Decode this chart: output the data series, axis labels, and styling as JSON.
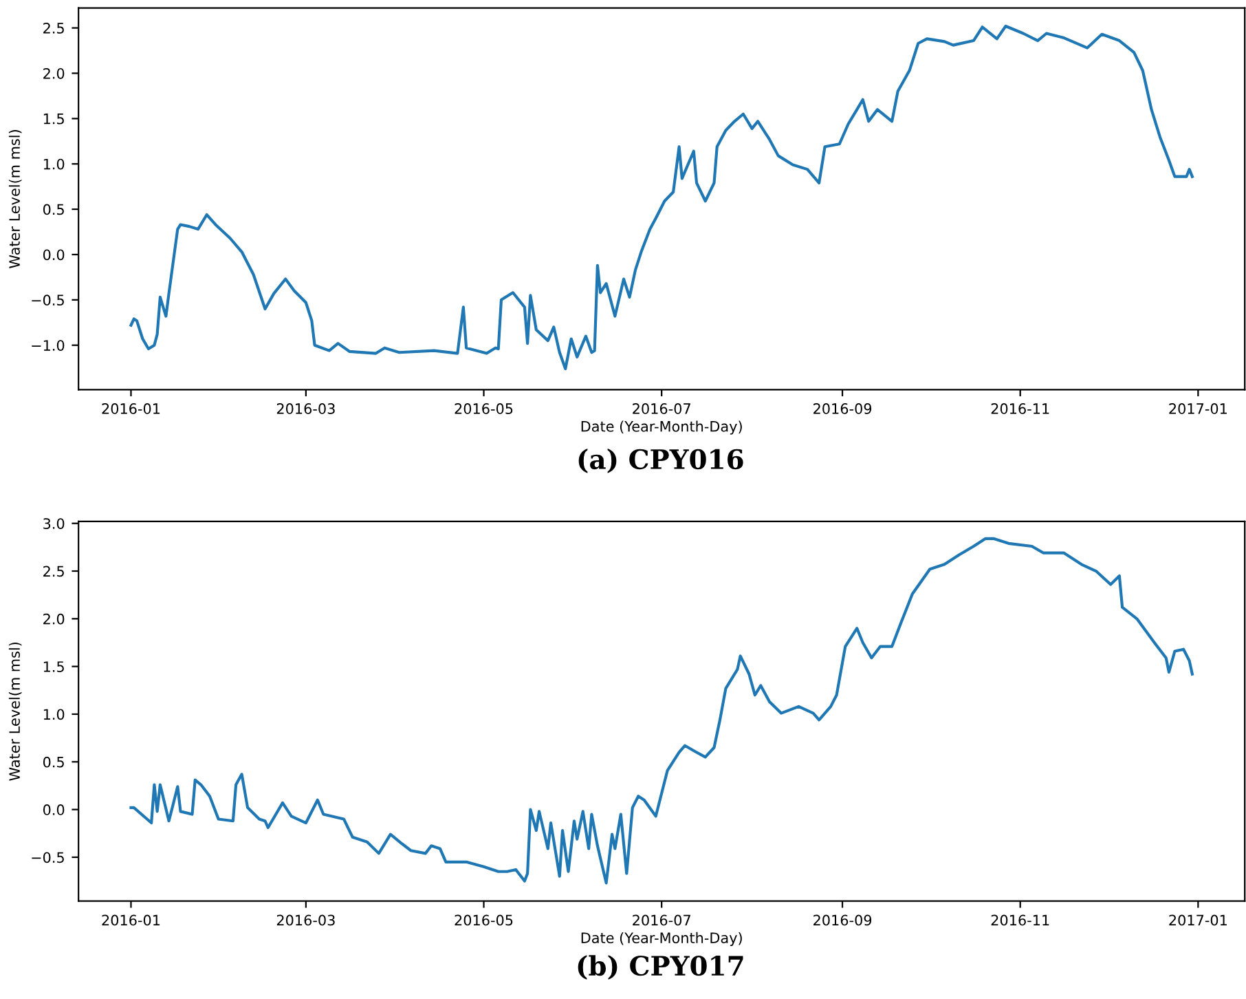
{
  "chart_data": [
    {
      "type": "line",
      "xlabel": "Date (Year-Month-Day)",
      "ylabel": "Water Level(m msl)",
      "annotations": [
        "(a) CPY016"
      ],
      "grid": false,
      "legend": false,
      "xlim": [
        "2015-12-14",
        "2017-01-17"
      ],
      "xticks": [
        "2016-01",
        "2016-03",
        "2016-05",
        "2016-07",
        "2016-09",
        "2016-11",
        "2017-01"
      ],
      "ylim": [
        -1.49,
        2.72
      ],
      "yticks": [
        {
          "value": -1,
          "label": "−1.0"
        },
        {
          "value": -0.5,
          "label": "−0.5"
        },
        {
          "value": 0,
          "label": "0.0"
        },
        {
          "value": 0.5,
          "label": "0.5"
        },
        {
          "value": 1,
          "label": "1.0"
        },
        {
          "value": 1.5,
          "label": "1.5"
        },
        {
          "value": 2,
          "label": "2.0"
        },
        {
          "value": 2.5,
          "label": "2.5"
        }
      ],
      "series": [
        {
          "color": "#1f77b4",
          "x": [
            "2016-01-01",
            "2016-01-02",
            "2016-01-03",
            "2016-01-05",
            "2016-01-07",
            "2016-01-09",
            "2016-01-10",
            "2016-01-11",
            "2016-01-13",
            "2016-01-14",
            "2016-01-17",
            "2016-01-18",
            "2016-01-21",
            "2016-01-24",
            "2016-01-27",
            "2016-01-30",
            "2016-02-04",
            "2016-02-08",
            "2016-02-12",
            "2016-02-16",
            "2016-02-19",
            "2016-02-23",
            "2016-02-26",
            "2016-03-01",
            "2016-03-03",
            "2016-03-04",
            "2016-03-09",
            "2016-03-12",
            "2016-03-16",
            "2016-03-25",
            "2016-03-28",
            "2016-04-02",
            "2016-04-14",
            "2016-04-22",
            "2016-04-24",
            "2016-04-25",
            "2016-05-02",
            "2016-05-05",
            "2016-05-06",
            "2016-05-07",
            "2016-05-11",
            "2016-05-15",
            "2016-05-16",
            "2016-05-17",
            "2016-05-19",
            "2016-05-23",
            "2016-05-25",
            "2016-05-27",
            "2016-05-29",
            "2016-05-31",
            "2016-06-02",
            "2016-06-05",
            "2016-06-07",
            "2016-06-08",
            "2016-06-09",
            "2016-06-10",
            "2016-06-12",
            "2016-06-15",
            "2016-06-18",
            "2016-06-20",
            "2016-06-22",
            "2016-06-24",
            "2016-06-27",
            "2016-06-29",
            "2016-07-02",
            "2016-07-05",
            "2016-07-07",
            "2016-07-08",
            "2016-07-12",
            "2016-07-13",
            "2016-07-16",
            "2016-07-19",
            "2016-07-20",
            "2016-07-23",
            "2016-07-26",
            "2016-07-29",
            "2016-08-01",
            "2016-08-03",
            "2016-08-07",
            "2016-08-10",
            "2016-08-15",
            "2016-08-20",
            "2016-08-24",
            "2016-08-26",
            "2016-08-31",
            "2016-09-03",
            "2016-09-06",
            "2016-09-08",
            "2016-09-10",
            "2016-09-13",
            "2016-09-18",
            "2016-09-20",
            "2016-09-24",
            "2016-09-27",
            "2016-09-30",
            "2016-10-06",
            "2016-10-09",
            "2016-10-16",
            "2016-10-19",
            "2016-10-24",
            "2016-10-27",
            "2016-11-02",
            "2016-11-07",
            "2016-11-10",
            "2016-11-16",
            "2016-11-24",
            "2016-11-29",
            "2016-12-05",
            "2016-12-10",
            "2016-12-13",
            "2016-12-16",
            "2016-12-19",
            "2016-12-22",
            "2016-12-24",
            "2016-12-28",
            "2016-12-29",
            "2016-12-30"
          ],
          "values": [
            -0.78,
            -0.71,
            -0.73,
            -0.93,
            -1.04,
            -1.0,
            -0.88,
            -0.47,
            -0.68,
            -0.43,
            0.28,
            0.33,
            0.31,
            0.28,
            0.44,
            0.33,
            0.18,
            0.03,
            -0.22,
            -0.6,
            -0.43,
            -0.27,
            -0.4,
            -0.53,
            -0.73,
            -1.0,
            -1.06,
            -0.98,
            -1.07,
            -1.09,
            -1.03,
            -1.08,
            -1.06,
            -1.09,
            -0.58,
            -1.03,
            -1.09,
            -1.03,
            -1.04,
            -0.5,
            -0.42,
            -0.58,
            -0.98,
            -0.45,
            -0.83,
            -0.95,
            -0.8,
            -1.08,
            -1.26,
            -0.93,
            -1.13,
            -0.9,
            -1.08,
            -1.06,
            -0.12,
            -0.42,
            -0.32,
            -0.68,
            -0.27,
            -0.47,
            -0.17,
            0.03,
            0.28,
            0.4,
            0.59,
            0.69,
            1.19,
            0.84,
            1.14,
            0.79,
            0.59,
            0.79,
            1.19,
            1.37,
            1.47,
            1.55,
            1.39,
            1.47,
            1.27,
            1.09,
            0.99,
            0.94,
            0.79,
            1.19,
            1.22,
            1.44,
            1.6,
            1.71,
            1.47,
            1.6,
            1.47,
            1.8,
            2.03,
            2.33,
            2.38,
            2.35,
            2.31,
            2.36,
            2.51,
            2.38,
            2.52,
            2.44,
            2.36,
            2.44,
            2.39,
            2.28,
            2.43,
            2.36,
            2.23,
            2.03,
            1.6,
            1.29,
            1.04,
            0.86,
            0.86,
            0.94,
            0.86
          ]
        }
      ]
    },
    {
      "type": "line",
      "xlabel": "Date (Year-Month-Day)",
      "ylabel": "Water Level(m msl)",
      "annotations": [
        "(b) CPY017"
      ],
      "grid": false,
      "legend": false,
      "xlim": [
        "2015-12-14",
        "2017-01-17"
      ],
      "xticks": [
        "2016-01",
        "2016-03",
        "2016-05",
        "2016-07",
        "2016-09",
        "2016-11",
        "2017-01"
      ],
      "ylim": [
        -0.96,
        3.02
      ],
      "yticks": [
        {
          "value": -0.5,
          "label": "−0.5"
        },
        {
          "value": 0,
          "label": "0.0"
        },
        {
          "value": 0.5,
          "label": "0.5"
        },
        {
          "value": 1,
          "label": "1.0"
        },
        {
          "value": 1.5,
          "label": "1.5"
        },
        {
          "value": 2,
          "label": "2.0"
        },
        {
          "value": 2.5,
          "label": "2.5"
        },
        {
          "value": 3,
          "label": "3.0"
        }
      ],
      "series": [
        {
          "color": "#1f77b4",
          "x": [
            "2016-01-01",
            "2016-01-02",
            "2016-01-08",
            "2016-01-09",
            "2016-01-10",
            "2016-01-11",
            "2016-01-14",
            "2016-01-17",
            "2016-01-18",
            "2016-01-22",
            "2016-01-23",
            "2016-01-25",
            "2016-01-28",
            "2016-01-31",
            "2016-02-05",
            "2016-02-06",
            "2016-02-08",
            "2016-02-10",
            "2016-02-14",
            "2016-02-16",
            "2016-02-17",
            "2016-02-22",
            "2016-02-25",
            "2016-03-01",
            "2016-03-05",
            "2016-03-07",
            "2016-03-14",
            "2016-03-17",
            "2016-03-22",
            "2016-03-26",
            "2016-03-30",
            "2016-04-03",
            "2016-04-06",
            "2016-04-11",
            "2016-04-13",
            "2016-04-16",
            "2016-04-18",
            "2016-04-25",
            "2016-05-01",
            "2016-05-06",
            "2016-05-09",
            "2016-05-12",
            "2016-05-15",
            "2016-05-16",
            "2016-05-17",
            "2016-05-19",
            "2016-05-20",
            "2016-05-23",
            "2016-05-24",
            "2016-05-27",
            "2016-05-28",
            "2016-05-30",
            "2016-06-01",
            "2016-06-02",
            "2016-06-04",
            "2016-06-06",
            "2016-06-07",
            "2016-06-09",
            "2016-06-12",
            "2016-06-14",
            "2016-06-15",
            "2016-06-17",
            "2016-06-19",
            "2016-06-21",
            "2016-06-23",
            "2016-06-25",
            "2016-06-29",
            "2016-07-03",
            "2016-07-07",
            "2016-07-09",
            "2016-07-13",
            "2016-07-16",
            "2016-07-19",
            "2016-07-21",
            "2016-07-23",
            "2016-07-27",
            "2016-07-28",
            "2016-07-31",
            "2016-08-02",
            "2016-08-04",
            "2016-08-07",
            "2016-08-11",
            "2016-08-17",
            "2016-08-22",
            "2016-08-24",
            "2016-08-28",
            "2016-08-30",
            "2016-09-02",
            "2016-09-06",
            "2016-09-08",
            "2016-09-11",
            "2016-09-14",
            "2016-09-18",
            "2016-09-21",
            "2016-09-25",
            "2016-10-01",
            "2016-10-06",
            "2016-10-11",
            "2016-10-16",
            "2016-10-20",
            "2016-10-23",
            "2016-10-28",
            "2016-11-05",
            "2016-11-09",
            "2016-11-16",
            "2016-11-22",
            "2016-11-27",
            "2016-12-02",
            "2016-12-05",
            "2016-12-06",
            "2016-12-11",
            "2016-12-17",
            "2016-12-21",
            "2016-12-22",
            "2016-12-24",
            "2016-12-27",
            "2016-12-29",
            "2016-12-30"
          ],
          "values": [
            0.02,
            0.02,
            -0.14,
            0.26,
            -0.02,
            0.26,
            -0.12,
            0.24,
            -0.02,
            -0.05,
            0.31,
            0.26,
            0.14,
            -0.1,
            -0.12,
            0.26,
            0.37,
            0.02,
            -0.1,
            -0.12,
            -0.19,
            0.07,
            -0.07,
            -0.14,
            0.1,
            -0.05,
            -0.1,
            -0.29,
            -0.34,
            -0.46,
            -0.26,
            -0.36,
            -0.43,
            -0.46,
            -0.38,
            -0.41,
            -0.55,
            -0.55,
            -0.6,
            -0.65,
            -0.65,
            -0.63,
            -0.75,
            -0.67,
            0.0,
            -0.22,
            -0.02,
            -0.41,
            -0.14,
            -0.7,
            -0.22,
            -0.65,
            -0.12,
            -0.31,
            -0.02,
            -0.41,
            -0.05,
            -0.38,
            -0.77,
            -0.26,
            -0.41,
            -0.05,
            -0.67,
            0.02,
            0.14,
            0.1,
            -0.07,
            0.41,
            0.6,
            0.67,
            0.6,
            0.55,
            0.65,
            0.94,
            1.27,
            1.47,
            1.61,
            1.42,
            1.2,
            1.3,
            1.13,
            1.01,
            1.08,
            1.01,
            0.94,
            1.08,
            1.2,
            1.71,
            1.9,
            1.75,
            1.59,
            1.71,
            1.71,
            1.95,
            2.26,
            2.52,
            2.57,
            2.67,
            2.76,
            2.84,
            2.84,
            2.79,
            2.76,
            2.69,
            2.69,
            2.57,
            2.5,
            2.36,
            2.45,
            2.12,
            2.0,
            1.75,
            1.59,
            1.44,
            1.66,
            1.68,
            1.56,
            1.42
          ]
        }
      ]
    }
  ]
}
